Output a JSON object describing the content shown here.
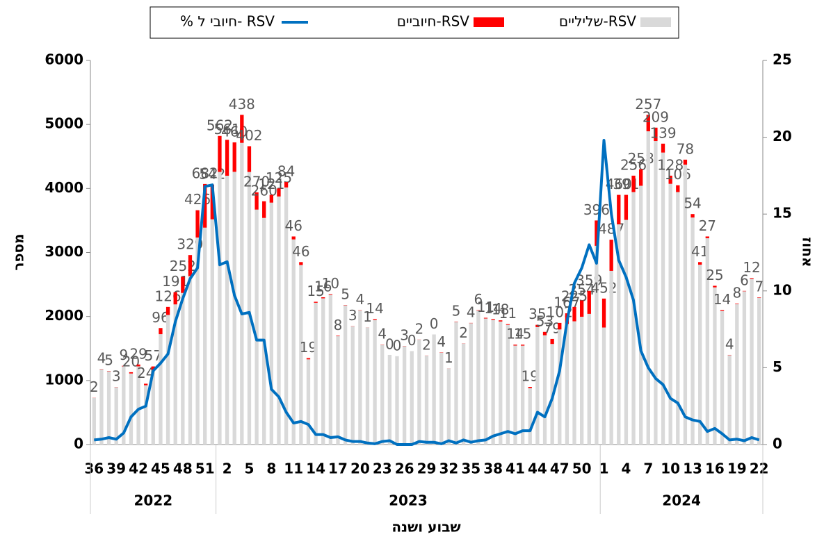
{
  "chart_data": {
    "type": "bar-line",
    "x_label": "שבוע ושנה",
    "y_label": "מספר",
    "y2_label": "אחוז",
    "categories": [
      "36",
      null,
      null,
      "39",
      null,
      null,
      "42",
      null,
      null,
      "45",
      null,
      null,
      "48",
      null,
      null,
      "51",
      null,
      null,
      "2",
      null,
      null,
      "5",
      null,
      null,
      "8",
      null,
      null,
      "11",
      null,
      null,
      "14",
      null,
      null,
      "17",
      null,
      null,
      "20",
      null,
      null,
      "23",
      null,
      null,
      "26",
      null,
      null,
      "29",
      null,
      null,
      "32",
      null,
      null,
      "35",
      null,
      null,
      "38",
      null,
      null,
      "41",
      null,
      null,
      "44",
      null,
      null,
      "47",
      null,
      null,
      "50",
      null,
      null,
      "1",
      null,
      null,
      "4",
      null,
      null,
      "7",
      null,
      null,
      "10",
      null,
      null,
      "13",
      null,
      null,
      "16",
      null,
      null,
      "19",
      null,
      null,
      "22"
    ],
    "groups": [
      {
        "name": "2022",
        "size": 17
      },
      {
        "name": "2023",
        "size": 52
      },
      {
        "name": "2024",
        "size": 22
      }
    ],
    "series": [
      {
        "name": "שליליים-RSV",
        "color": "#d9d9d9",
        "kind": "bar",
        "values": [
          728,
          1176,
          1145,
          897,
          1221,
          1110,
          1221,
          926,
          1163,
          1724,
          2024,
          2189,
          2368,
          2631,
          3234,
          3388,
          3518,
          4258,
          4199,
          4260,
          4712,
          4258,
          3670,
          3540,
          3779,
          3875,
          4016,
          3204,
          2804,
          1331,
          2215,
          2284,
          2340,
          1692,
          2175,
          1847,
          2096,
          1829,
          1946,
          1556,
          1400,
          1380,
          1537,
          1460,
          1638,
          1388,
          1720,
          1436,
          1189,
          1915,
          1578,
          1896,
          2094,
          1969,
          1946,
          1922,
          1869,
          1546,
          1545,
          881,
          1835,
          1707,
          1571,
          1798,
          1883,
          1925,
          1996,
          2041,
          3104,
          1828,
          2713,
          3440,
          3509,
          3944,
          4042,
          4893,
          4741,
          4561,
          4072,
          3944,
          4372,
          3546,
          2809,
          3223,
          2455,
          2086,
          1396,
          2192,
          2394,
          2588,
          2293
        ]
      },
      {
        "name": "חיוביים-RSV",
        "color": "#ff0000",
        "kind": "bar",
        "labels": true,
        "values": [
          2,
          4,
          5,
          3,
          9,
          20,
          29,
          24,
          57,
          96,
          126,
          191,
          252,
          329,
          426,
          682,
          542,
          562,
          561,
          460,
          438,
          402,
          270,
          260,
          121,
          125,
          84,
          46,
          46,
          19,
          15,
          16,
          10,
          8,
          5,
          3,
          4,
          1,
          14,
          4,
          0,
          0,
          3,
          0,
          2,
          2,
          0,
          4,
          1,
          5,
          2,
          4,
          6,
          11,
          14,
          18,
          11,
          14,
          15,
          19,
          35,
          53,
          79,
          102,
          167,
          225,
          254,
          359,
          396,
          452,
          487,
          460,
          391,
          256,
          258,
          257,
          209,
          139,
          128,
          106,
          78,
          54,
          41,
          27,
          25,
          14,
          4,
          8,
          6,
          12,
          7
        ]
      },
      {
        "name": "% חיובי ל- RSV",
        "color": "#0070c0",
        "kind": "line",
        "axis": "y2",
        "values": [
          0.3,
          0.35,
          0.45,
          0.35,
          0.75,
          1.8,
          2.3,
          2.5,
          4.8,
          5.3,
          5.9,
          8.0,
          9.5,
          10.8,
          11.5,
          16.8,
          16.9,
          11.7,
          11.9,
          9.7,
          8.5,
          8.6,
          6.8,
          6.8,
          3.6,
          3.1,
          2.1,
          1.4,
          1.5,
          1.3,
          0.65,
          0.65,
          0.45,
          0.5,
          0.3,
          0.2,
          0.2,
          0.1,
          0.05,
          0.2,
          0.25,
          0,
          0,
          0,
          0.2,
          0.15,
          0.15,
          0.05,
          0.25,
          0.1,
          0.3,
          0.15,
          0.25,
          0.3,
          0.55,
          0.7,
          0.85,
          0.7,
          0.9,
          0.9,
          2.1,
          1.8,
          3.0,
          4.8,
          8.0,
          10.5,
          11.5,
          13.0,
          11.8,
          19.8,
          15.0,
          12.0,
          10.9,
          9.4,
          6.1,
          5.0,
          4.3,
          3.9,
          3.0,
          2.7,
          1.8,
          1.6,
          1.5,
          0.85,
          1.05,
          0.7,
          0.3,
          0.35,
          0.25,
          0.45,
          0.3
        ]
      }
    ],
    "ylim": [
      0,
      6000
    ],
    "yticks": [
      0,
      1000,
      2000,
      3000,
      4000,
      5000,
      6000
    ],
    "y2lim": [
      0,
      25
    ],
    "y2ticks": [
      0,
      5,
      10,
      15,
      20,
      25
    ],
    "legend": "top"
  }
}
